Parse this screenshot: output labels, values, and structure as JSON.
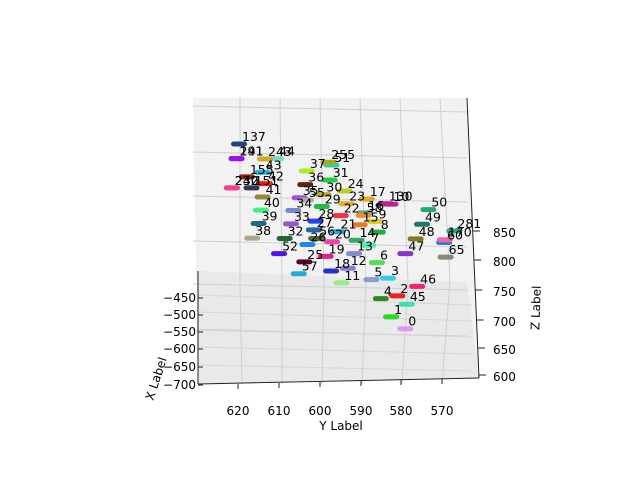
{
  "chart_data": {
    "type": "scatter",
    "projection": "3d",
    "xlabel": "X Label",
    "ylabel": "Y Label",
    "zlabel": "Z Label",
    "grid": true,
    "x_ticks": [
      "−450",
      "−500",
      "−550",
      "−600",
      "−650",
      "−700"
    ],
    "y_ticks": [
      "620",
      "610",
      "600",
      "590",
      "580",
      "570"
    ],
    "z_ticks": [
      "600",
      "650",
      "700",
      "750",
      "800",
      "850"
    ],
    "points": [
      {
        "label": "0",
        "x": -690,
        "y": 576,
        "z": 650,
        "color": "#dd99ee"
      },
      {
        "label": "1",
        "x": -670,
        "y": 580,
        "z": 670,
        "color": "#22dd22"
      },
      {
        "label": "2",
        "x": -640,
        "y": 579,
        "z": 705,
        "color": "#ee2222"
      },
      {
        "label": "3",
        "x": -610,
        "y": 582,
        "z": 735,
        "color": "#33ccee"
      },
      {
        "label": "4",
        "x": -650,
        "y": 583,
        "z": 700,
        "color": "#338822"
      },
      {
        "label": "5",
        "x": -620,
        "y": 586,
        "z": 732,
        "color": "#8899dd"
      },
      {
        "label": "6",
        "x": -600,
        "y": 585,
        "z": 760,
        "color": "#55dd55"
      },
      {
        "label": "7",
        "x": -560,
        "y": 588,
        "z": 790,
        "color": "#44eeaa"
      },
      {
        "label": "8",
        "x": -540,
        "y": 586,
        "z": 812,
        "color": "#22aa44"
      },
      {
        "label": "9",
        "x": -520,
        "y": 587,
        "z": 830,
        "color": "#ddcc22"
      },
      {
        "label": "10",
        "x": -480,
        "y": 584,
        "z": 860,
        "color": "#bb22aa"
      },
      {
        "label": "11",
        "x": -650,
        "y": 593,
        "z": 725,
        "color": "#99ee88"
      },
      {
        "label": "12",
        "x": -620,
        "y": 592,
        "z": 750,
        "color": "#8877dd"
      },
      {
        "label": "13",
        "x": -590,
        "y": 591,
        "z": 775,
        "color": "#8888cc"
      },
      {
        "label": "14",
        "x": -560,
        "y": 591,
        "z": 798,
        "color": "#33aa66"
      },
      {
        "label": "15",
        "x": -520,
        "y": 591,
        "z": 825,
        "color": "#ee7722"
      },
      {
        "label": "16",
        "x": -500,
        "y": 590,
        "z": 845,
        "color": "#55aa88"
      },
      {
        "label": "17",
        "x": -480,
        "y": 590,
        "z": 868,
        "color": "#ddaa22"
      },
      {
        "label": "18",
        "x": -630,
        "y": 596,
        "z": 745,
        "color": "#2233cc"
      },
      {
        "label": "19",
        "x": -600,
        "y": 598,
        "z": 770,
        "color": "#dd2288"
      },
      {
        "label": "20",
        "x": -570,
        "y": 597,
        "z": 795,
        "color": "#ee44aa"
      },
      {
        "label": "21",
        "x": -550,
        "y": 596,
        "z": 812,
        "color": "#22aacc"
      },
      {
        "label": "22",
        "x": -510,
        "y": 596,
        "z": 840,
        "color": "#ee3344"
      },
      {
        "label": "23",
        "x": -490,
        "y": 595,
        "z": 860,
        "color": "#eeaa22"
      },
      {
        "label": "24",
        "x": -460,
        "y": 596,
        "z": 882,
        "color": "#bbcc22"
      },
      {
        "label": "25",
        "x": -620,
        "y": 603,
        "z": 760,
        "color": "#660033"
      },
      {
        "label": "26",
        "x": -580,
        "y": 603,
        "z": 790,
        "color": "#2288ee"
      },
      {
        "label": "27",
        "x": -550,
        "y": 602,
        "z": 815,
        "color": "#2266aa"
      },
      {
        "label": "28",
        "x": -530,
        "y": 602,
        "z": 830,
        "color": "#2244ee"
      },
      {
        "label": "29",
        "x": -500,
        "y": 601,
        "z": 855,
        "color": "#22bb44"
      },
      {
        "label": "30",
        "x": -480,
        "y": 601,
        "z": 875,
        "color": "#bbaa33"
      },
      {
        "label": "31",
        "x": -450,
        "y": 600,
        "z": 900,
        "color": "#22cc44"
      },
      {
        "label": "32",
        "x": -570,
        "y": 609,
        "z": 800,
        "color": "#226633"
      },
      {
        "label": "33",
        "x": -540,
        "y": 608,
        "z": 825,
        "color": "#9955cc"
      },
      {
        "label": "34",
        "x": -510,
        "y": 608,
        "z": 848,
        "color": "#7788cc"
      },
      {
        "label": "35",
        "x": -480,
        "y": 607,
        "z": 870,
        "color": "#9955dd"
      },
      {
        "label": "36",
        "x": -460,
        "y": 606,
        "z": 892,
        "color": "#662211"
      },
      {
        "label": "37",
        "x": -440,
        "y": 606,
        "z": 915,
        "color": "#aaee22"
      },
      {
        "label": "38",
        "x": -580,
        "y": 617,
        "z": 800,
        "color": "#aaaa88"
      },
      {
        "label": "39",
        "x": -550,
        "y": 616,
        "z": 825,
        "color": "#226688"
      },
      {
        "label": "40",
        "x": -520,
        "y": 616,
        "z": 848,
        "color": "#44ee88"
      },
      {
        "label": "41",
        "x": -500,
        "y": 616,
        "z": 870,
        "color": "#998833"
      },
      {
        "label": "42",
        "x": -470,
        "y": 616,
        "z": 893,
        "color": "#ee2211"
      },
      {
        "label": "43",
        "x": -450,
        "y": 617,
        "z": 912,
        "color": "#22bbcc"
      },
      {
        "label": "44",
        "x": -430,
        "y": 614,
        "z": 935,
        "color": "#77ddbb"
      },
      {
        "label": "45",
        "x": -670,
        "y": 576,
        "z": 690,
        "color": "#44ddaa"
      },
      {
        "label": "46",
        "x": -640,
        "y": 574,
        "z": 720,
        "color": "#ee2277"
      },
      {
        "label": "47",
        "x": -590,
        "y": 578,
        "z": 775,
        "color": "#8833cc"
      },
      {
        "label": "48",
        "x": -560,
        "y": 576,
        "z": 800,
        "color": "#887722"
      },
      {
        "label": "49",
        "x": -530,
        "y": 575,
        "z": 825,
        "color": "#227766"
      },
      {
        "label": "50",
        "x": -500,
        "y": 574,
        "z": 850,
        "color": "#22aa77"
      },
      {
        "label": "51",
        "x": -430,
        "y": 600,
        "z": 925,
        "color": "#33ccaa"
      },
      {
        "label": "52",
        "x": -590,
        "y": 610,
        "z": 775,
        "color": "#5511ee"
      },
      {
        "label": "55",
        "x": -500,
        "y": 605,
        "z": 865,
        "color": "#aaaaaa"
      },
      {
        "label": "56",
        "x": -570,
        "y": 601,
        "z": 800,
        "color": "#556633"
      },
      {
        "label": "57",
        "x": -640,
        "y": 604,
        "z": 740,
        "color": "#22aadd"
      },
      {
        "label": "58",
        "x": -520,
        "y": 590,
        "z": 840,
        "color": "#ee8833"
      },
      {
        "label": "60",
        "x": -550,
        "y": 569,
        "z": 795,
        "color": "#3377cc"
      },
      {
        "label": "65",
        "x": -580,
        "y": 568,
        "z": 770,
        "color": "#888877"
      },
      {
        "label": "130",
        "x": -490,
        "y": 585,
        "z": 860,
        "color": "#bb2288"
      },
      {
        "label": "137",
        "x": -400,
        "y": 624,
        "z": 960,
        "color": "#224477"
      },
      {
        "label": "151",
        "x": -490,
        "y": 619,
        "z": 885,
        "color": "#333355"
      },
      {
        "label": "155",
        "x": -450,
        "y": 621,
        "z": 905,
        "color": "#882211"
      },
      {
        "label": "170",
        "x": -540,
        "y": 569,
        "z": 800,
        "color": "#ee66aa"
      },
      {
        "label": "191",
        "x": -430,
        "y": 624,
        "z": 935,
        "color": "#9911ee"
      },
      {
        "label": "230",
        "x": -490,
        "y": 624,
        "z": 885,
        "color": "#ee4488"
      },
      {
        "label": "241",
        "x": -430,
        "y": 624,
        "z": 935,
        "color": "#9911ee"
      },
      {
        "label": "242",
        "x": -490,
        "y": 624,
        "z": 885,
        "color": "#ee4488"
      },
      {
        "label": "243",
        "x": -420,
        "y": 617,
        "z": 935,
        "color": "#ccaa22"
      },
      {
        "label": "255",
        "x": -420,
        "y": 601,
        "z": 930,
        "color": "#aaaa22"
      },
      {
        "label": "281",
        "x": -520,
        "y": 567,
        "z": 815,
        "color": "#22aa88"
      }
    ]
  }
}
